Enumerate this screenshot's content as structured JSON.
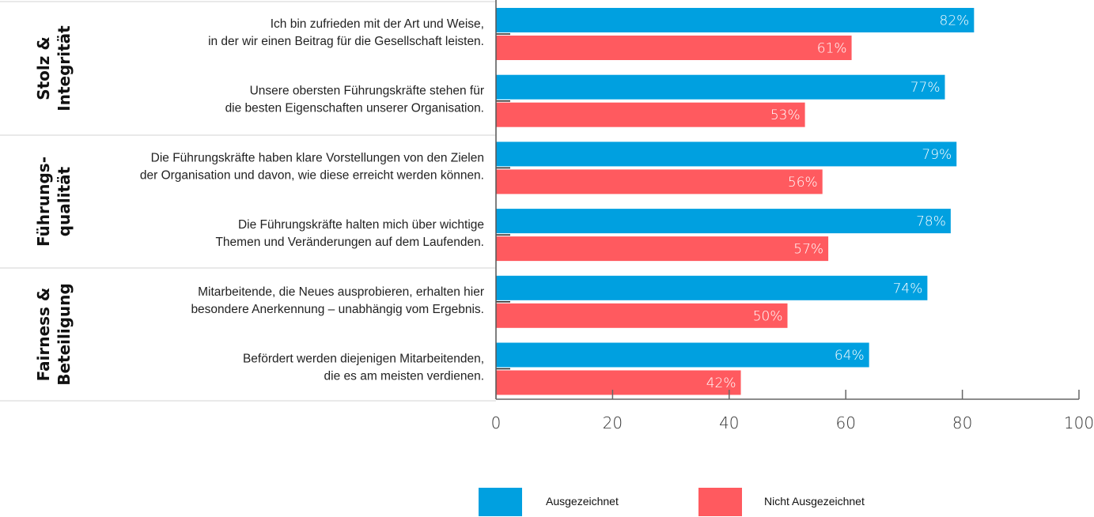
{
  "chart_data": {
    "type": "bar",
    "orientation": "horizontal",
    "title": "",
    "xlabel": "",
    "ylabel": "",
    "xlim": [
      0,
      100
    ],
    "x_ticks": [
      "0",
      "20",
      "40",
      "60",
      "80",
      "100"
    ],
    "grid": false,
    "legend_position": "bottom",
    "value_suffix": "%",
    "colors": {
      "Ausgezeichnet": "#00a0e0",
      "Nicht Ausgezeichnet": "#ff5a5f"
    },
    "groups": [
      {
        "name": "Stolz & Integrität",
        "name_lines": [
          "Stolz &",
          "Integrität"
        ],
        "items": [
          0,
          1
        ]
      },
      {
        "name": "Führungsqualität",
        "name_lines": [
          "Führungs-",
          "qualität"
        ],
        "items": [
          2,
          3
        ]
      },
      {
        "name": "Fairness & Beteiligung",
        "name_lines": [
          "Fairness &",
          "Beteiligung"
        ],
        "items": [
          4,
          5
        ]
      }
    ],
    "categories": [
      [
        "Ich bin zufrieden mit der Art und Weise,",
        "in der wir einen Beitrag für die Gesellschaft leisten."
      ],
      [
        "Unsere obersten Führungskräfte stehen für",
        "die besten Eigenschaften unserer Organisation."
      ],
      [
        "Die Führungskräfte haben klare Vorstellungen von den Zielen",
        "der Organisation und davon, wie diese erreicht werden können."
      ],
      [
        "Die Führungskräfte halten mich über wichtige",
        "Themen und Veränderungen auf dem Laufenden."
      ],
      [
        "Mitarbeitende, die Neues ausprobieren, erhalten hier",
        "besondere Anerkennung – unabhängig vom Ergebnis."
      ],
      [
        "Befördert werden diejenigen Mitarbeitenden,",
        "die es am meisten verdienen."
      ]
    ],
    "series": [
      {
        "name": "Ausgezeichnet",
        "color": "#00a0e0",
        "values": [
          82,
          77,
          79,
          78,
          74,
          64
        ]
      },
      {
        "name": "Nicht Ausgezeichnet",
        "color": "#ff5a5f",
        "values": [
          61,
          53,
          56,
          57,
          50,
          42
        ]
      }
    ]
  }
}
